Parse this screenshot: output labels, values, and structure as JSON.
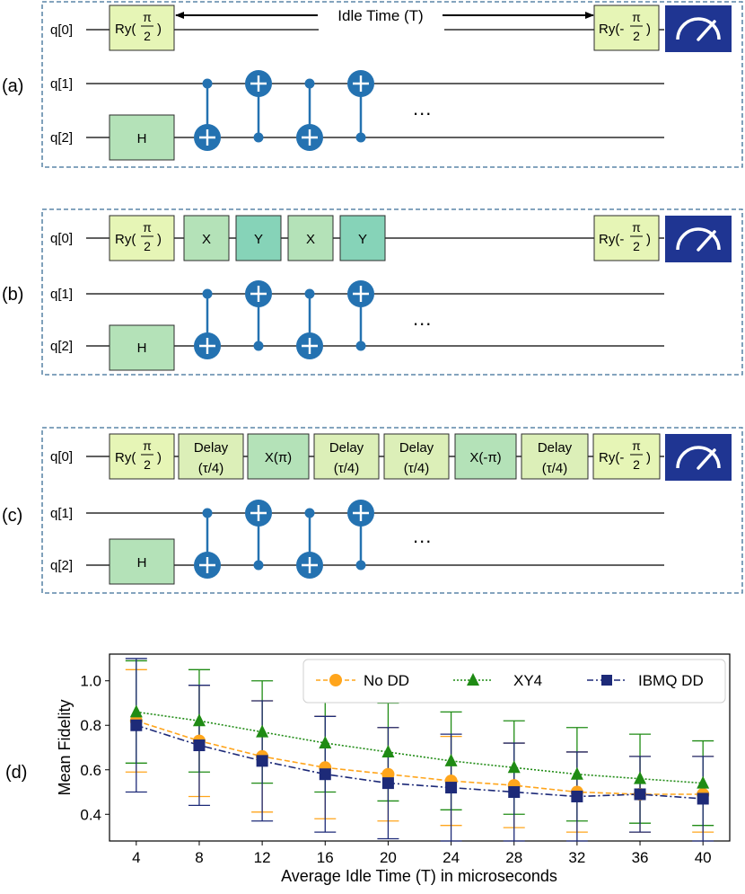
{
  "colors": {
    "frame": "#3b6e96",
    "wire": "#000000",
    "gate_ry": "#e6f5b6",
    "gate_h": "#b4e2b8",
    "gate_x": "#b4e2b8",
    "gate_y": "#86d3b8",
    "gate_delay": "#dcefb8",
    "gate_border": "#2c2c2c",
    "measure_bg": "#1f3592",
    "cnot": "#2472b1",
    "no_dd": "#ffa51c",
    "xy4": "#1f8b14",
    "ibmq_dd": "#1d2a78"
  },
  "qubits": [
    "q[0]",
    "q[1]",
    "q[2]"
  ],
  "panels": [
    {
      "label": "(a)",
      "idle_label": "Idle Time (T)",
      "ellipsis": "..."
    },
    {
      "label": "(b)",
      "ellipsis": "..."
    },
    {
      "label": "(c)",
      "ellipsis": "..."
    }
  ],
  "gates": {
    "ry_prefix": "Ry(",
    "ry_neg_prefix": "Ry(-",
    "ry_num": "π",
    "ry_den": "2",
    "ry_suffix": ")",
    "h": "H",
    "x": "X",
    "y": "Y",
    "delay_top": "Delay",
    "delay_bottom": "(τ/4)",
    "x_pi": "X(π)",
    "x_neg_pi": "X(-π)",
    "measure_icon": "meter-icon"
  },
  "panel_d": {
    "label": "(d)"
  },
  "chart_data": {
    "type": "line",
    "xlabel": "Average Idle Time (T) in microseconds",
    "ylabel": "Mean Fidelity",
    "x": [
      4,
      8,
      12,
      16,
      20,
      24,
      28,
      32,
      36,
      40
    ],
    "xlim": [
      2.3,
      41.7
    ],
    "ylim": [
      0.28,
      1.12
    ],
    "yticks": [
      0.4,
      0.6,
      0.8,
      1.0
    ],
    "ytick_labels": [
      "0.4",
      "0.6",
      "0.8",
      "1.0"
    ],
    "grid": false,
    "legend_position": "top-right",
    "series": [
      {
        "name": "No DD",
        "values": [
          0.82,
          0.73,
          0.66,
          0.61,
          0.58,
          0.55,
          0.53,
          0.5,
          0.49,
          0.49
        ],
        "err": [
          0.23,
          0.25,
          0.25,
          0.23,
          0.21,
          0.2,
          0.19,
          0.18,
          0.17,
          0.17
        ],
        "marker": "circle",
        "linestyle": "dashed",
        "color": "#ffa51c"
      },
      {
        "name": "XY4",
        "values": [
          0.86,
          0.82,
          0.77,
          0.72,
          0.68,
          0.64,
          0.61,
          0.58,
          0.56,
          0.54
        ],
        "err": [
          0.23,
          0.23,
          0.23,
          0.22,
          0.22,
          0.22,
          0.21,
          0.21,
          0.2,
          0.19
        ],
        "marker": "triangle",
        "linestyle": "dotted",
        "color": "#1f8b14"
      },
      {
        "name": "IBMQ DD",
        "values": [
          0.8,
          0.71,
          0.64,
          0.58,
          0.54,
          0.52,
          0.5,
          0.48,
          0.49,
          0.47
        ],
        "err": [
          0.3,
          0.27,
          0.27,
          0.26,
          0.25,
          0.24,
          0.22,
          0.2,
          0.17,
          0.19
        ],
        "marker": "square",
        "linestyle": "dashdot",
        "color": "#1d2a78"
      }
    ]
  }
}
